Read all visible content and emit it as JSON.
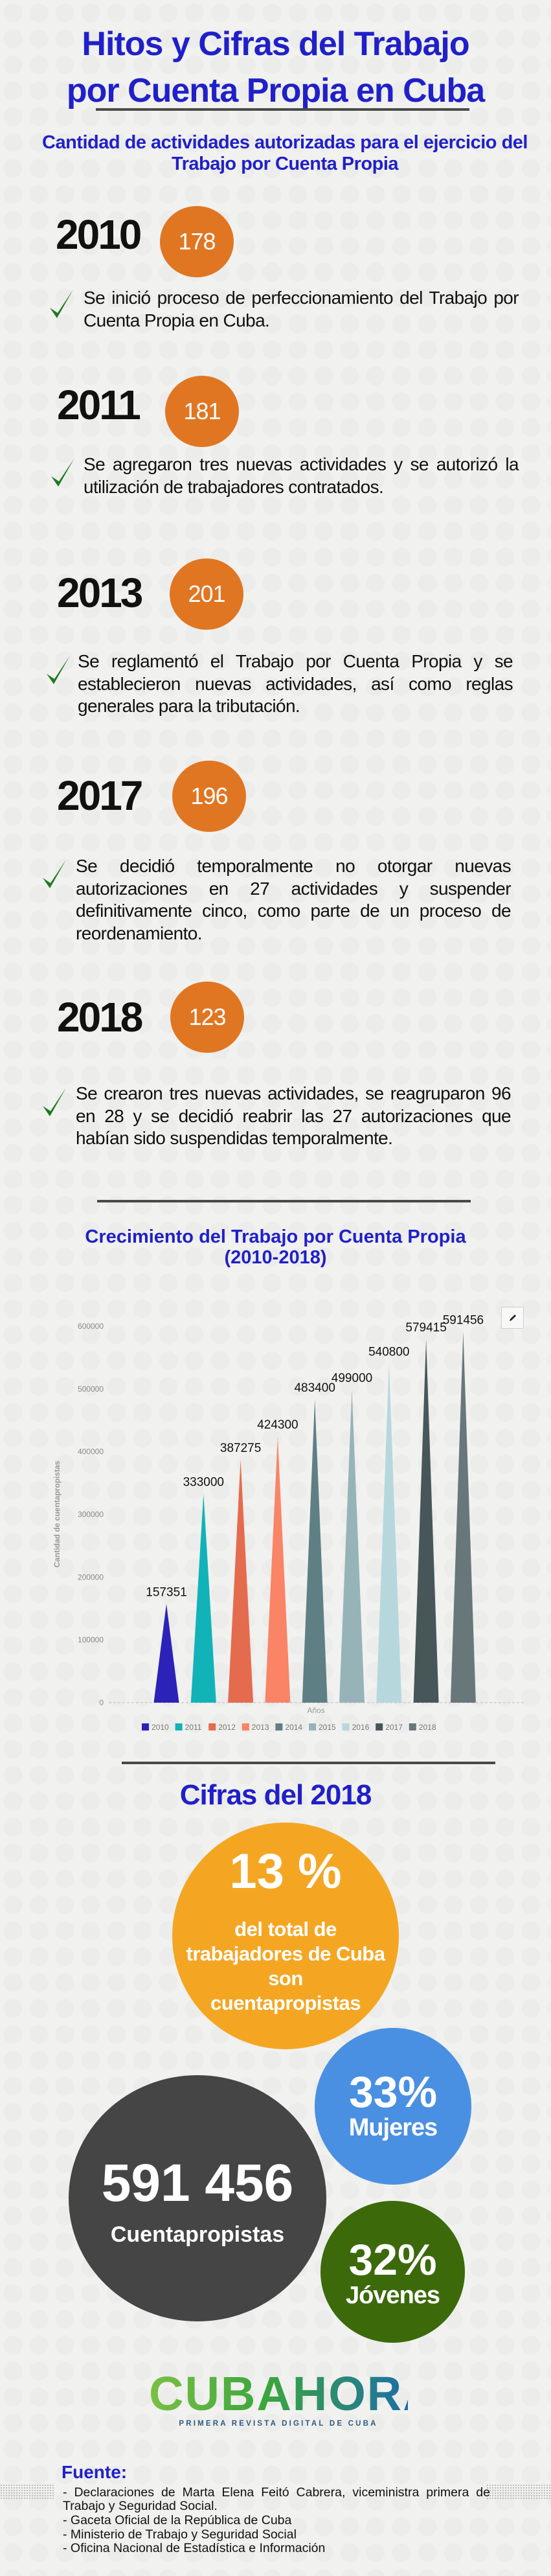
{
  "header": {
    "title_line1": "Hitos y Cifras del Trabajo",
    "title_line2": "por Cuenta Propia en Cuba",
    "subtitle": "Cantidad de actividades autorizadas para el ejercicio del Trabajo por Cuenta Propia"
  },
  "milestones": [
    {
      "year": "2010",
      "count": "178",
      "text": "Se inició proceso de perfeccionamiento del Trabajo por Cuenta Propia en Cuba."
    },
    {
      "year": "2011",
      "count": "181",
      "text": "Se agregaron tres nuevas actividades  y se autorizó la utilización de trabajadores contratados."
    },
    {
      "year": "2013",
      "count": "201",
      "text": "Se reglamentó el Trabajo por Cuenta Propia y se establecieron nuevas actividades, así como reglas generales para la tributación."
    },
    {
      "year": "2017",
      "count": "196",
      "text": "Se decidió temporalmente no otorgar nuevas autorizaciones en 27 actividades y suspender definitivamente cinco, como parte de un proceso de reordenamiento."
    },
    {
      "year": "2018",
      "count": "123",
      "text": "Se crearon tres nuevas actividades, se reagruparon 96 en 28 y se decidió reabrir las 27 autorizaciones que habían sido suspendidas temporalmente."
    }
  ],
  "colors": {
    "accent_blue": "#2020c8",
    "badge_orange": "#e07622",
    "check_green": "#1e7a1e"
  },
  "chart_data": {
    "type": "bar",
    "mark": "triangle",
    "title_line1": "Crecimiento del Trabajo por Cuenta Propia",
    "title_line2": "(2010-2018)",
    "xlabel": "Años",
    "ylabel": "Cantidad de cuentapropistas",
    "ylim": [
      0,
      600000
    ],
    "yticks": [
      "0",
      "100000",
      "200000",
      "300000",
      "400000",
      "500000",
      "600000"
    ],
    "grid": false,
    "legend": "bottom",
    "categories": [
      "2010",
      "2011",
      "2012",
      "2013",
      "2014",
      "2015",
      "2016",
      "2017",
      "2018"
    ],
    "values": [
      157351,
      333000,
      387275,
      424300,
      483400,
      499000,
      540800,
      579415,
      591456
    ],
    "labels": [
      "157351",
      "333000",
      "387275",
      "424300",
      "483400",
      "499000",
      "540800",
      "579415",
      "591456"
    ],
    "colors": [
      "#2b22b8",
      "#11b3b8",
      "#e56b4e",
      "#f98466",
      "#5e8085",
      "#96b4b8",
      "#b6d8dd",
      "#475659",
      "#687779"
    ]
  },
  "stats": {
    "heading": "Cifras del 2018",
    "share_value": "13 %",
    "share_text_1": "del total de",
    "share_text_2": "trabajadores de Cuba",
    "share_text_3": "son",
    "share_text_4": "cuentapropistas",
    "total_value": "591 456",
    "total_label": "Cuentapropistas",
    "women_value": "33%",
    "women_label": "Mujeres",
    "youth_value": "32%",
    "youth_label": "Jóvenes",
    "color_share": "#f4a623",
    "color_total": "#454545",
    "color_women": "#4a90e2",
    "color_youth": "#3c6a0b"
  },
  "logo": {
    "name": "CUBAHORA",
    "tagline": "PRIMERA REVISTA DIGITAL DE CUBA"
  },
  "sources": {
    "heading": "Fuente:",
    "items": [
      "- Declaraciones de  Marta Elena Feitó Cabrera, viceministra primera de Trabajo y Seguridad Social.",
      "- Gaceta Oficial de la República de Cuba",
      "- Ministerio de Trabajo y Seguridad Social",
      "- Oficina Nacional de Estadística e Información"
    ]
  }
}
